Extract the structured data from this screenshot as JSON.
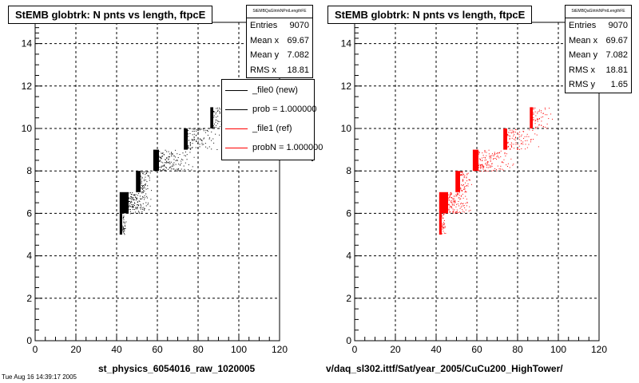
{
  "chart_data": [
    {
      "type": "scatter",
      "title": "StEMB globtrk: N pnts vs length, ftpcE",
      "xlabel": "st_physics_6054016_raw_1020005",
      "ylabel": "",
      "xlim": [
        0,
        120
      ],
      "ylim": [
        0,
        15
      ],
      "x_ticks": [
        0,
        20,
        40,
        60,
        80,
        100,
        120
      ],
      "y_ticks": [
        0,
        2,
        4,
        6,
        8,
        10,
        12,
        14
      ],
      "grid": true,
      "color": "#000000",
      "stats": {
        "name": "StEMBQaGlrtrkNPntLengthFE",
        "rows": [
          {
            "label": "Entries",
            "value": "9070"
          },
          {
            "label": "Mean x",
            "value": "69.67"
          },
          {
            "label": "Mean y",
            "value": "7.082"
          },
          {
            "label": "RMS x",
            "value": "18.81"
          }
        ]
      },
      "legend": [
        {
          "label": "_file0 (new)",
          "color": "#000000"
        },
        {
          "label": "prob = 1.000000",
          "color": "#000000"
        },
        {
          "label": "_file1 (ref)",
          "color": "#ff0000"
        },
        {
          "label": "probN = 1.000000",
          "color": "#ff0000"
        }
      ],
      "bands": [
        {
          "n": 5,
          "x_range": [
            41.5,
            44.5
          ],
          "tail_x": 44.5,
          "density": "full"
        },
        {
          "n": 6,
          "x_range": [
            41.5,
            57
          ],
          "tail_x": 54,
          "density": "dense"
        },
        {
          "n": 7,
          "x_range": [
            49.5,
            57
          ],
          "tail_x": 56,
          "density": "dense"
        },
        {
          "n": 8,
          "x_range": [
            58,
            78
          ],
          "tail_x": 66,
          "density": "medium"
        },
        {
          "n": 9,
          "x_range": [
            73,
            90
          ],
          "tail_x": 78,
          "density": "sparse"
        },
        {
          "n": 10,
          "x_range": [
            86,
            97
          ],
          "tail_x": 90,
          "density": "sparse"
        }
      ]
    },
    {
      "type": "scatter",
      "title": "StEMB globtrk: N pnts vs length, ftpcE",
      "xlabel": "v/daq_sl302.ittf/Sat/year_2005/CuCu200_HighTower/",
      "ylabel": "",
      "xlim": [
        0,
        120
      ],
      "ylim": [
        0,
        15
      ],
      "x_ticks": [
        0,
        20,
        40,
        60,
        80,
        100,
        120
      ],
      "y_ticks": [
        0,
        2,
        4,
        6,
        8,
        10,
        12,
        14
      ],
      "grid": true,
      "color": "#ff0000",
      "stats": {
        "name": "StEMBQaGlrtrkNPntLengthFE",
        "rows": [
          {
            "label": "Entries",
            "value": "9070"
          },
          {
            "label": "Mean x",
            "value": "69.67"
          },
          {
            "label": "Mean y",
            "value": "7.082"
          },
          {
            "label": "RMS x",
            "value": "18.81"
          },
          {
            "label": "RMS y",
            "value": "1.65"
          }
        ]
      },
      "bands": [
        {
          "n": 5,
          "x_range": [
            41.5,
            44.5
          ],
          "tail_x": 44.5,
          "density": "full"
        },
        {
          "n": 6,
          "x_range": [
            41.5,
            57
          ],
          "tail_x": 54,
          "density": "dense"
        },
        {
          "n": 7,
          "x_range": [
            49.5,
            57
          ],
          "tail_x": 56,
          "density": "dense"
        },
        {
          "n": 8,
          "x_range": [
            58,
            78
          ],
          "tail_x": 66,
          "density": "medium"
        },
        {
          "n": 9,
          "x_range": [
            73,
            90
          ],
          "tail_x": 78,
          "density": "sparse"
        },
        {
          "n": 10,
          "x_range": [
            86,
            97
          ],
          "tail_x": 90,
          "density": "sparse"
        }
      ]
    }
  ],
  "footer": "Tue Aug 16 14:39:17 2005"
}
